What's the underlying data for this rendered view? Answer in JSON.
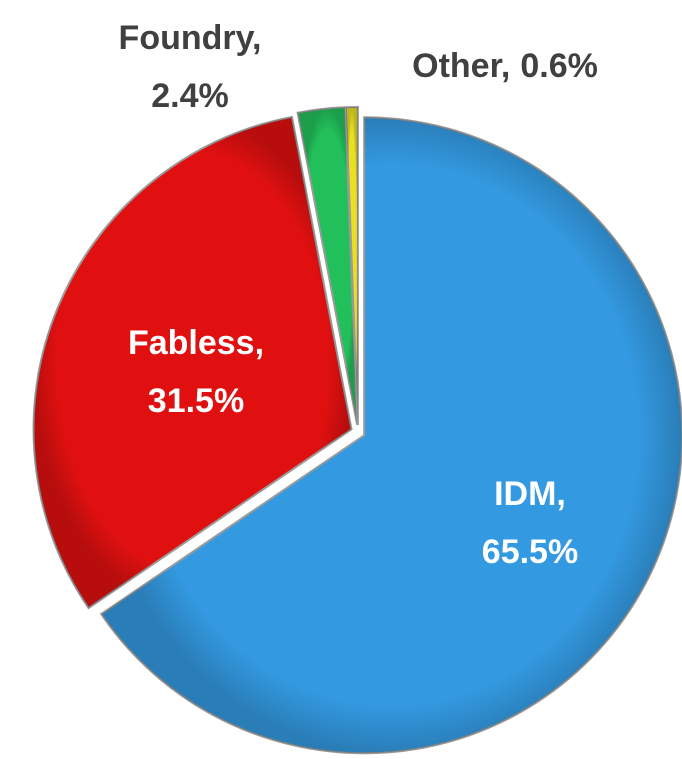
{
  "chart_data": {
    "type": "pie",
    "categories": [
      "IDM,",
      "Fabless,",
      "Foundry,",
      "Other,"
    ],
    "values": [
      65.5,
      31.5,
      2.4,
      0.6
    ],
    "value_labels": [
      "65.5%",
      "31.5%",
      "2.4%",
      "0.6%"
    ],
    "colors": [
      "#3399e0",
      "#e01010",
      "#22c05a",
      "#e8e020"
    ]
  }
}
